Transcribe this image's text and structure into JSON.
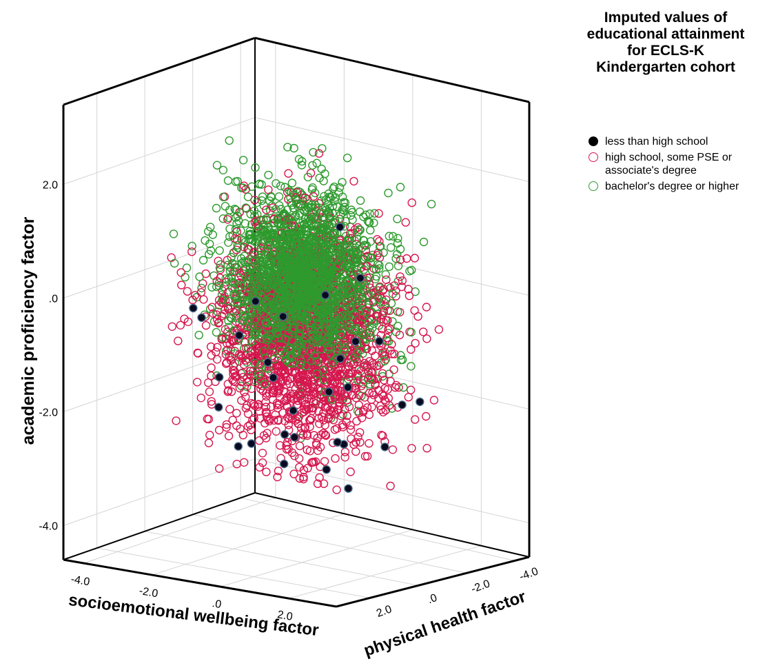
{
  "chart_data": {
    "type": "scatter",
    "projection": "3d",
    "xlabel": "socioemotional wellbeing factor",
    "ylabel": "physical health factor",
    "zlabel": "academic proficiency factor",
    "x_ticks": [
      "-4.0",
      "-2.0",
      ".0",
      "2.0"
    ],
    "y_ticks": [
      "2.0",
      ".0",
      "-2.0",
      "-4.0"
    ],
    "z_ticks": [
      "2.0",
      ".0",
      "-2.0",
      "-4.0"
    ],
    "xlim": [
      -4.6,
      3.4
    ],
    "ylim": [
      3.4,
      -4.6
    ],
    "zlim": [
      -4.6,
      3.4
    ],
    "grid": true,
    "legend_title": "Imputed values of educational attainment for ECLS-K Kindergarten cohort",
    "legend_position": "top-right",
    "series": [
      {
        "name": "less than high school",
        "color": "#000000",
        "fill": "#0a0a1e",
        "marker": "filled-circle",
        "points": [
          [
            -1.2,
            0.4,
            -2.6
          ],
          [
            0.8,
            -0.6,
            -2.5
          ],
          [
            1.6,
            0.8,
            -2.2
          ],
          [
            2.2,
            1.2,
            -2.9
          ],
          [
            -0.4,
            -0.2,
            -2.0
          ],
          [
            0.2,
            0.6,
            -2.3
          ],
          [
            -2.8,
            0.2,
            -0.6
          ],
          [
            -2.4,
            -0.8,
            -1.0
          ],
          [
            1.8,
            -1.6,
            -1.8
          ],
          [
            2.6,
            -1.2,
            -1.6
          ],
          [
            2.8,
            2.4,
            1.9
          ],
          [
            -1.6,
            1.2,
            -1.9
          ],
          [
            0.6,
            1.6,
            -2.6
          ],
          [
            1.2,
            -0.2,
            -1.4
          ],
          [
            -0.8,
            0.8,
            0.0
          ],
          [
            0.4,
            -0.4,
            0.1
          ],
          [
            -2.0,
            0.6,
            -1.5
          ],
          [
            0.0,
            1.2,
            -1.2
          ],
          [
            1.4,
            0.4,
            -0.8
          ],
          [
            -1.4,
            -1.2,
            -0.6
          ],
          [
            2.0,
            -0.6,
            -2.4
          ],
          [
            0.9,
            2.0,
            -2.0
          ],
          [
            -0.2,
            -1.4,
            -1.8
          ],
          [
            1.0,
            -1.0,
            0.4
          ],
          [
            -2.2,
            1.4,
            -0.2
          ],
          [
            1.7,
            1.4,
            -2.6
          ],
          [
            2.4,
            0.2,
            -0.4
          ],
          [
            -0.6,
            1.8,
            -2.4
          ],
          [
            0.3,
            -1.8,
            -0.9
          ],
          [
            -1.0,
            0.0,
            -1.2
          ]
        ]
      },
      {
        "name": "high school, some PSE or associate's degree",
        "color": "#d6174f",
        "marker": "open-circle",
        "distribution": {
          "center": [
            0.0,
            0.0,
            -0.6
          ],
          "sd": [
            1.05,
            1.05,
            0.95
          ],
          "n": 1800
        }
      },
      {
        "name": "bachelor's degree or higher",
        "color": "#2e9a2e",
        "marker": "open-circle",
        "distribution": {
          "center": [
            0.1,
            0.1,
            0.35
          ],
          "sd": [
            1.0,
            1.0,
            0.85
          ],
          "n": 2200
        }
      }
    ]
  }
}
